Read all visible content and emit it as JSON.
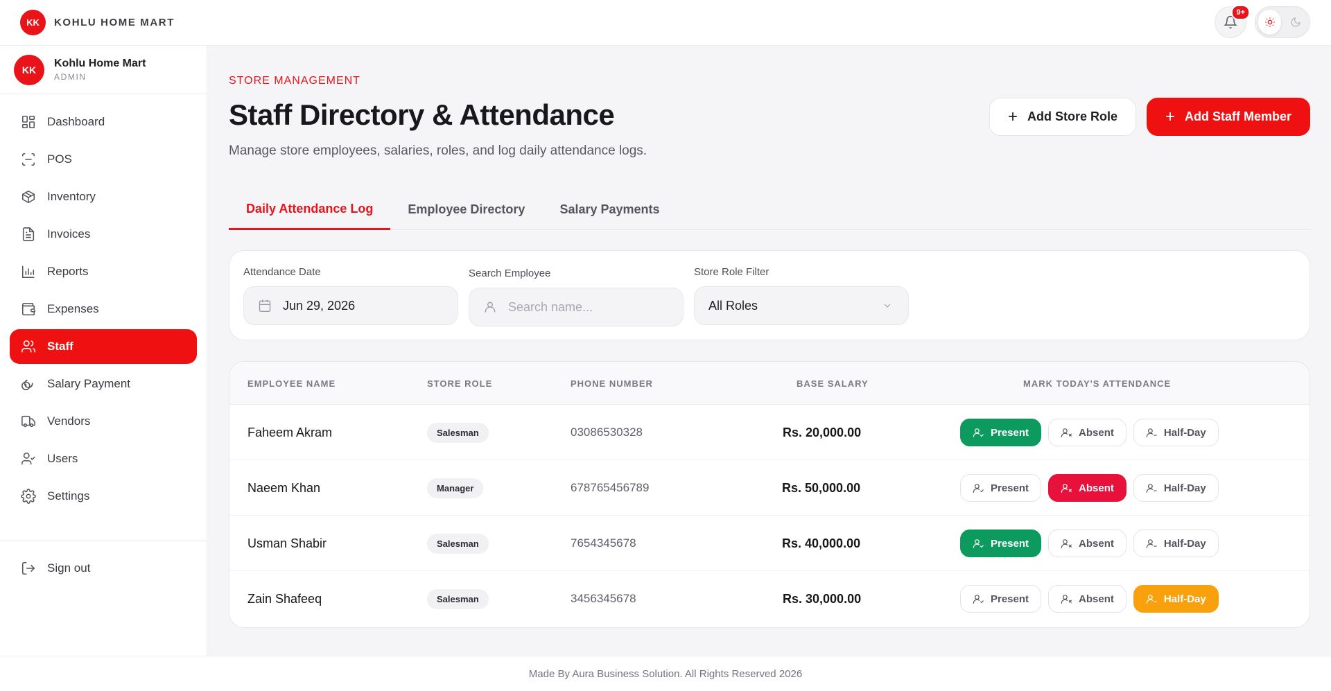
{
  "app": {
    "brand_name": "KOHLU HOME MART",
    "notification_count": "9+"
  },
  "sidebar": {
    "profile_name": "Kohlu Home Mart",
    "profile_role": "ADMIN",
    "items": [
      {
        "label": "Dashboard",
        "icon": "dashboard-icon"
      },
      {
        "label": "POS",
        "icon": "scan-icon"
      },
      {
        "label": "Inventory",
        "icon": "box-icon"
      },
      {
        "label": "Invoices",
        "icon": "document-icon"
      },
      {
        "label": "Reports",
        "icon": "bar-chart-icon"
      },
      {
        "label": "Expenses",
        "icon": "wallet-icon"
      },
      {
        "label": "Staff",
        "icon": "users-icon",
        "active": true
      },
      {
        "label": "Salary Payment",
        "icon": "coins-icon"
      },
      {
        "label": "Vendors",
        "icon": "truck-icon"
      },
      {
        "label": "Users",
        "icon": "user-check-icon"
      },
      {
        "label": "Settings",
        "icon": "gear-icon"
      }
    ],
    "signout_label": "Sign out"
  },
  "header": {
    "eyebrow": "STORE MANAGEMENT",
    "title": "Staff Directory & Attendance",
    "subtitle": "Manage store employees, salaries, roles, and log daily attendance logs.",
    "add_role_label": "Add Store Role",
    "add_staff_label": "Add Staff Member"
  },
  "tabs": [
    {
      "label": "Daily Attendance Log",
      "active": true
    },
    {
      "label": "Employee Directory",
      "active": false
    },
    {
      "label": "Salary Payments",
      "active": false
    }
  ],
  "filters": {
    "date_label": "Attendance Date",
    "date_value": "Jun 29, 2026",
    "search_label": "Search Employee",
    "search_placeholder": "Search name...",
    "role_label": "Store Role Filter",
    "role_value": "All Roles"
  },
  "table": {
    "columns": [
      "EMPLOYEE NAME",
      "STORE ROLE",
      "PHONE NUMBER",
      "BASE SALARY",
      "MARK TODAY'S ATTENDANCE"
    ],
    "attendance_labels": {
      "present": "Present",
      "absent": "Absent",
      "halfday": "Half-Day"
    },
    "rows": [
      {
        "name": "Faheem Akram",
        "role": "Salesman",
        "phone": "03086530328",
        "salary": "Rs. 20,000.00",
        "status": "present"
      },
      {
        "name": "Naeem Khan",
        "role": "Manager",
        "phone": "678765456789",
        "salary": "Rs. 50,000.00",
        "status": "absent"
      },
      {
        "name": "Usman Shabir",
        "role": "Salesman",
        "phone": "7654345678",
        "salary": "Rs. 40,000.00",
        "status": "present"
      },
      {
        "name": "Zain Shafeeq",
        "role": "Salesman",
        "phone": "3456345678",
        "salary": "Rs. 30,000.00",
        "status": "halfday"
      }
    ]
  },
  "footer": {
    "text": "Made By Aura Business Solution. All Rights Reserved 2026"
  },
  "colors": {
    "accent": "#ef1111",
    "present": "#0d9a5e",
    "absent": "#e8113c",
    "halfday": "#f8a10c"
  }
}
